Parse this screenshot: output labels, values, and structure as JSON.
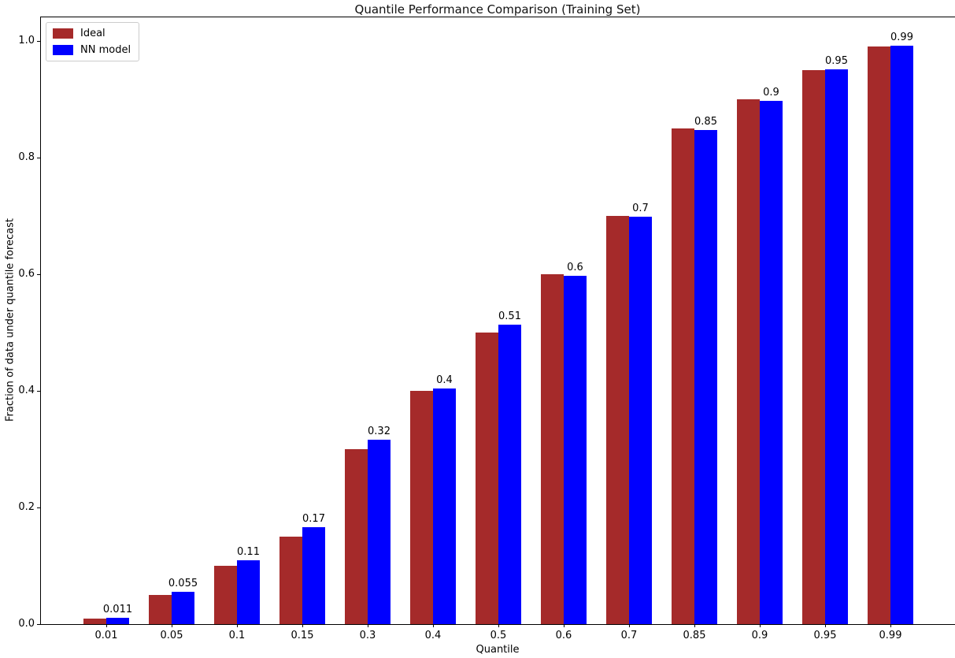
{
  "chart_data": {
    "type": "bar",
    "title": "Quantile Performance Comparison (Training Set)",
    "xlabel": "Quantile",
    "ylabel": "Fraction of data under quantile forecast",
    "categories": [
      "0.01",
      "0.05",
      "0.1",
      "0.15",
      "0.3",
      "0.4",
      "0.5",
      "0.6",
      "0.7",
      "0.85",
      "0.9",
      "0.95",
      "0.99"
    ],
    "series": [
      {
        "name": "Ideal",
        "color": "#a52a2a",
        "values": [
          0.01,
          0.05,
          0.1,
          0.15,
          0.3,
          0.4,
          0.5,
          0.6,
          0.7,
          0.85,
          0.9,
          0.95,
          0.99
        ]
      },
      {
        "name": "NN model",
        "color": "#0000ff",
        "values": [
          0.011,
          0.055,
          0.11,
          0.166,
          0.316,
          0.404,
          0.513,
          0.597,
          0.698,
          0.847,
          0.897,
          0.951,
          0.992
        ]
      }
    ],
    "bar_value_labels": [
      "0.011",
      "0.055",
      "0.11",
      "0.17",
      "0.32",
      "0.4",
      "0.51",
      "0.6",
      "0.7",
      "0.85",
      "0.9",
      "0.95",
      "0.99"
    ],
    "y_ticks": [
      "0.0",
      "0.2",
      "0.4",
      "0.6",
      "0.8",
      "1.0"
    ],
    "ylim": [
      0,
      1.042
    ],
    "xlim_units": [
      -1,
      13
    ],
    "grid": false,
    "legend_position": "upper left",
    "axis_color": "#000000",
    "background_color": "#ffffff"
  }
}
